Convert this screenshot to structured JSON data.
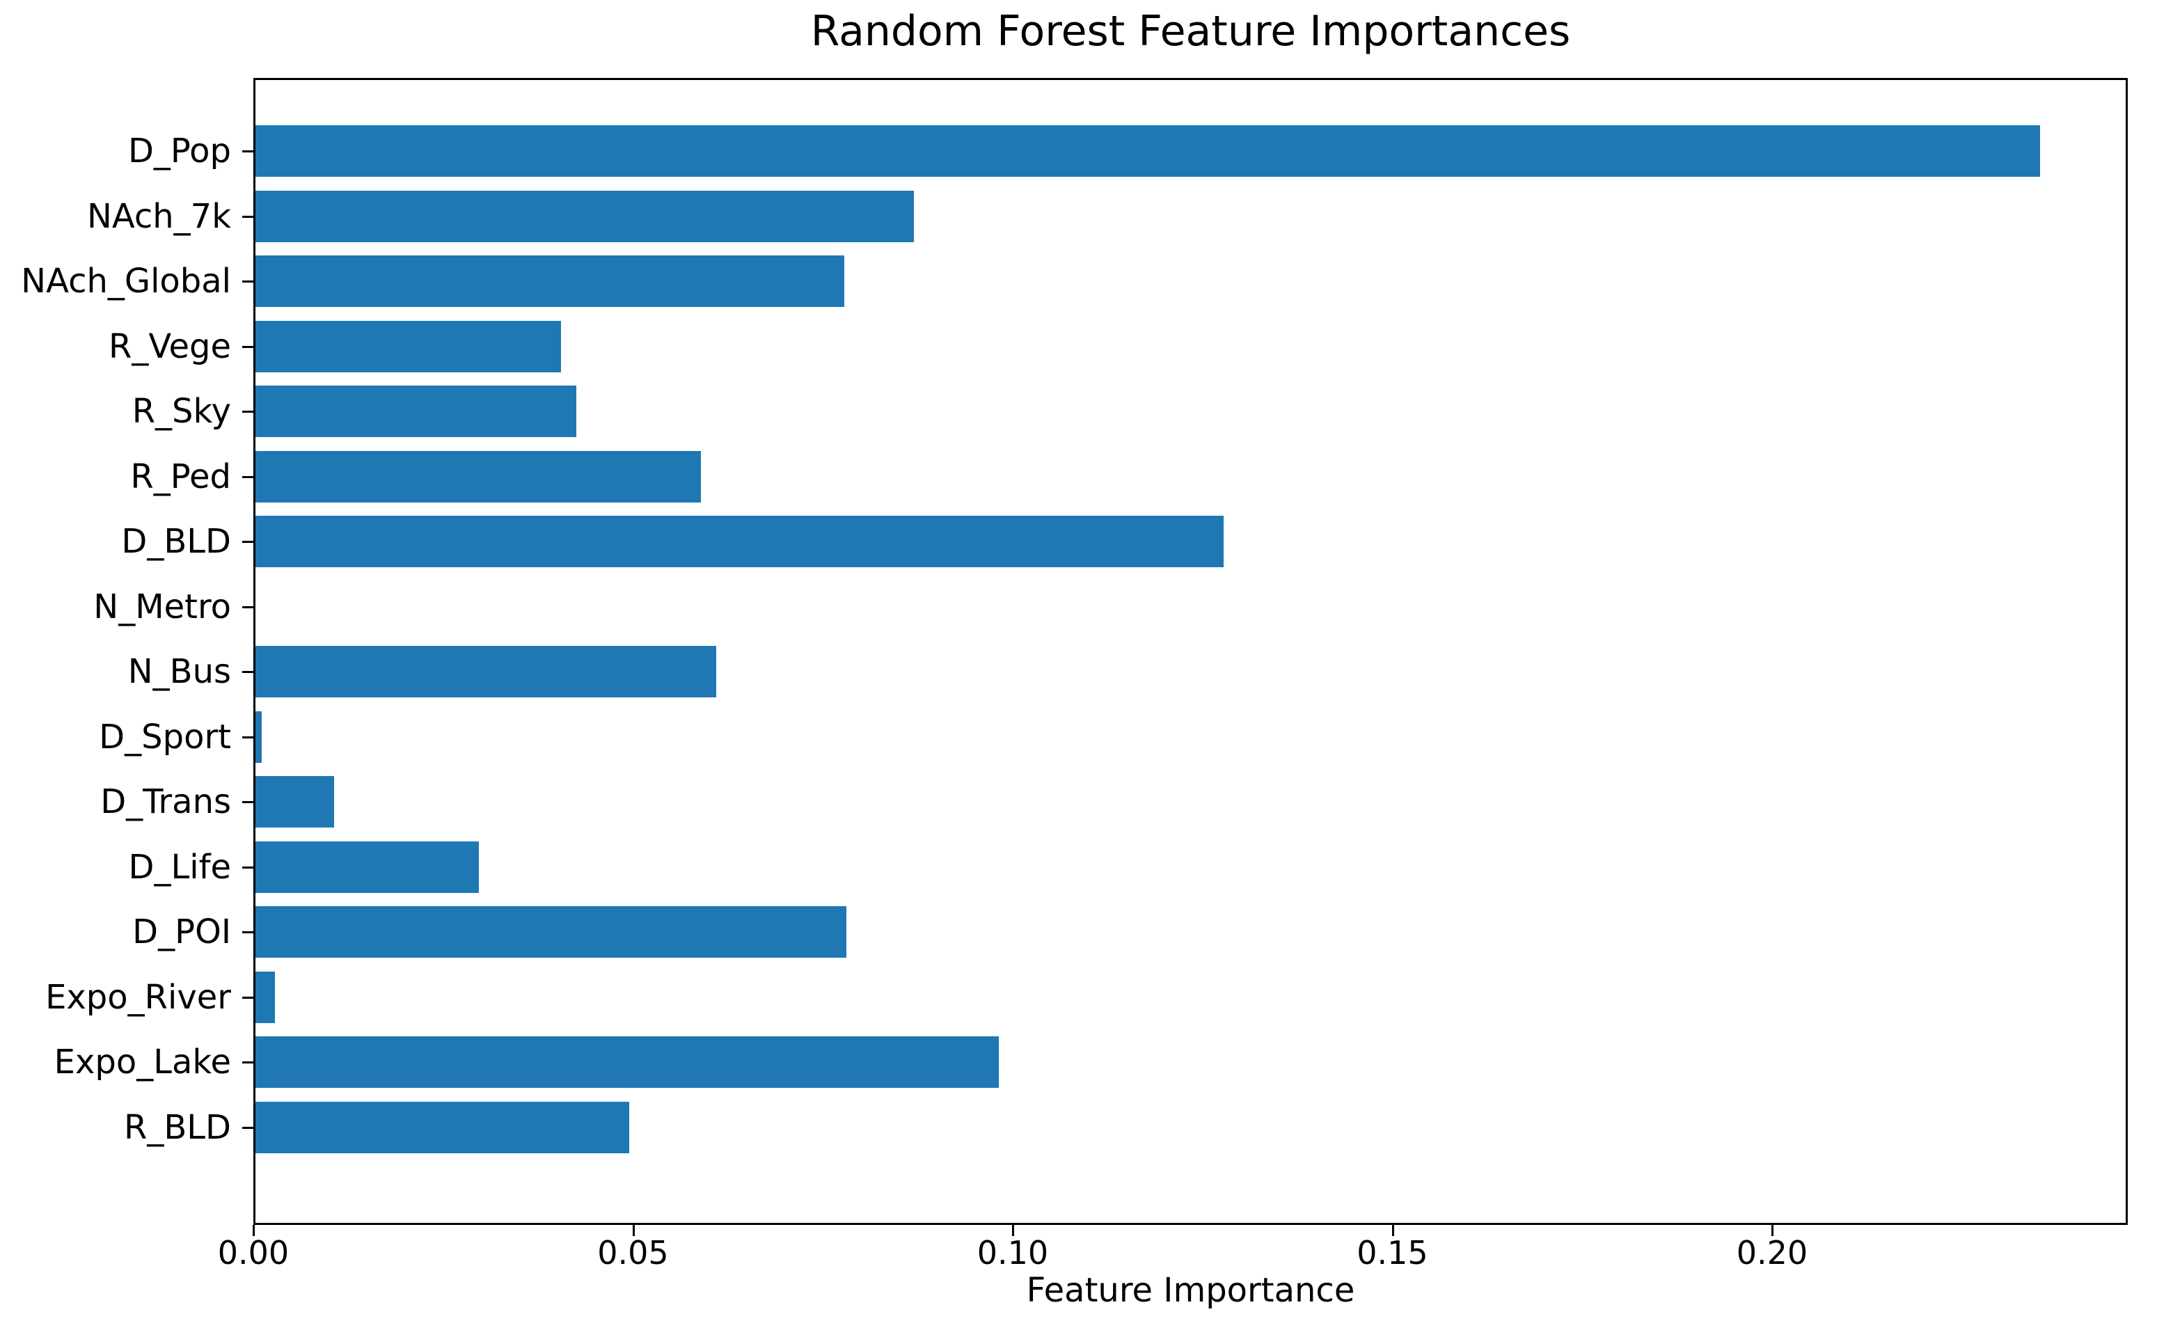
{
  "chart_data": {
    "type": "bar",
    "orientation": "horizontal",
    "title": "Random Forest Feature Importances",
    "xlabel": "Feature Importance",
    "ylabel": "",
    "categories": [
      "D_Pop",
      "NAch_7k",
      "NAch_Global",
      "R_Vege",
      "R_Sky",
      "R_Ped",
      "D_BLD",
      "N_Metro",
      "N_Bus",
      "D_Sport",
      "D_Trans",
      "D_Life",
      "D_POI",
      "Expo_River",
      "Expo_Lake",
      "R_BLD"
    ],
    "values": [
      0.235,
      0.0867,
      0.0775,
      0.0402,
      0.0423,
      0.0587,
      0.1275,
      0.0,
      0.0607,
      0.0008,
      0.0104,
      0.0294,
      0.0778,
      0.0026,
      0.0979,
      0.0492
    ],
    "x_ticks": [
      0.0,
      0.05,
      0.1,
      0.15,
      0.2
    ],
    "x_tick_labels": [
      "0.00",
      "0.05",
      "0.10",
      "0.15",
      "0.20"
    ],
    "xlim": [
      0,
      0.247
    ],
    "grid": false,
    "legend": null,
    "bar_color": "#1f77b4"
  },
  "colors": {
    "bar": "#1f77b4",
    "spine": "#000000",
    "text": "#000000",
    "background": "#ffffff"
  }
}
